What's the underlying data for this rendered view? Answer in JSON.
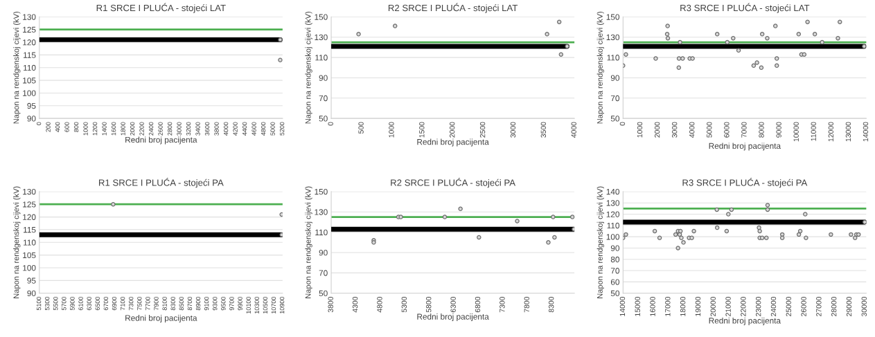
{
  "chart_data": [
    {
      "type": "scatter",
      "title": "R1 SRCE I PLUĆA - stojeći LAT",
      "xlabel": "Redni broj pacijenta",
      "ylabel": "Napon na rendgenskoj cijevi (kV)",
      "xlim": [
        0,
        5200
      ],
      "xticks": [
        0,
        200,
        400,
        600,
        800,
        1000,
        1200,
        1400,
        1600,
        1800,
        2000,
        2200,
        2400,
        2600,
        2800,
        3000,
        3200,
        3400,
        3600,
        3800,
        4000,
        4200,
        4400,
        4600,
        4800,
        5000,
        5200
      ],
      "ylim": [
        90,
        130
      ],
      "yticks": [
        90,
        95,
        100,
        105,
        110,
        115,
        120,
        125,
        130
      ],
      "grid": "y",
      "marker": "circle",
      "ref_lines": [
        {
          "axis": "y",
          "value": 125,
          "color": "#4caf50"
        }
      ],
      "series": [
        {
          "type": "line",
          "marker": "none",
          "color": "#000000",
          "x": [
            0,
            5150
          ],
          "values": [
            121,
            121
          ]
        },
        {
          "color": "#6e6e6e",
          "x": [
            5150,
            5150
          ],
          "values": [
            121,
            113
          ]
        }
      ]
    },
    {
      "type": "scatter",
      "title": "R2 SRCE I PLUĆA - stojeći LAT",
      "xlabel": "Redni broj pacijenta",
      "ylabel": "Napon na rendgenskoj cijevi (kV)",
      "xlim": [
        0,
        4000
      ],
      "xticks": [
        0,
        500,
        1000,
        1500,
        2000,
        2500,
        3000,
        3500,
        4000
      ],
      "ylim": [
        50,
        150
      ],
      "yticks": [
        50,
        70,
        90,
        110,
        130,
        150
      ],
      "grid": "y",
      "marker": "circle",
      "ref_lines": [
        {
          "axis": "y",
          "value": 125,
          "color": "#4caf50"
        }
      ],
      "series": [
        {
          "type": "line",
          "marker": "none",
          "color": "#000000",
          "x": [
            0,
            3880
          ],
          "values": [
            121,
            121
          ]
        },
        {
          "color": "#6e6e6e",
          "x": [
            450,
            1050,
            3550,
            3750,
            3780,
            3880
          ],
          "values": [
            133,
            141,
            133,
            145,
            113,
            121
          ]
        }
      ]
    },
    {
      "type": "scatter",
      "title": "R3 SRCE I PLUĆA - stojeći LAT",
      "xlabel": "Redni broj pacijenta",
      "ylabel": "Napon na rendgenskoj cijevi (kV)",
      "xlim": [
        0,
        14000
      ],
      "xticks": [
        0,
        1000,
        2000,
        3000,
        4000,
        5000,
        6000,
        7000,
        8000,
        9000,
        10000,
        11000,
        12000,
        13000,
        14000
      ],
      "ylim": [
        50,
        150
      ],
      "yticks": [
        50,
        70,
        90,
        110,
        130,
        150
      ],
      "grid": "y",
      "marker": "circle",
      "ref_lines": [
        {
          "axis": "y",
          "value": 125,
          "color": "#4caf50"
        }
      ],
      "series": [
        {
          "type": "line",
          "marker": "none",
          "color": "#000000",
          "x": [
            0,
            13880
          ],
          "values": [
            121,
            121
          ]
        },
        {
          "color": "#6e6e6e",
          "x": [
            0,
            165,
            1880,
            2565,
            2540,
            2580,
            3210,
            3220,
            3430,
            3280,
            3840,
            4000,
            5420,
            6000,
            6340,
            6650,
            7520,
            7710,
            7960,
            8010,
            8300,
            8770,
            8850,
            8850,
            10110,
            10270,
            10430,
            10620,
            11040,
            11460,
            12370,
            12480,
            13880
          ],
          "values": [
            102,
            113,
            109,
            141,
            133,
            129,
            100,
            109,
            109,
            125,
            109,
            109,
            133,
            125,
            129,
            117,
            102,
            105,
            100,
            133,
            129,
            141,
            109,
            102,
            133,
            113,
            113,
            145,
            133,
            125,
            129,
            145,
            121
          ]
        }
      ]
    },
    {
      "type": "scatter",
      "title": "R1 SRCE I PLUĆA - stojeći PA",
      "xlabel": "Redni broj pacijenta",
      "ylabel": "Napon na rendgenskoj cijevi (kV)",
      "xlim": [
        5100,
        10900
      ],
      "xticks": [
        5100,
        5300,
        5500,
        5700,
        5900,
        6100,
        6300,
        6500,
        6700,
        6900,
        7100,
        7300,
        7500,
        7700,
        7900,
        8100,
        8300,
        8500,
        8700,
        8900,
        9100,
        9300,
        9500,
        9700,
        9900,
        10100,
        10300,
        10500,
        10700,
        10900
      ],
      "ylim": [
        90,
        130
      ],
      "yticks": [
        90,
        95,
        100,
        105,
        110,
        115,
        120,
        125,
        130
      ],
      "grid": "y",
      "marker": "circle",
      "ref_lines": [
        {
          "axis": "y",
          "value": 125,
          "color": "#4caf50"
        }
      ],
      "series": [
        {
          "type": "line",
          "marker": "none",
          "color": "#000000",
          "x": [
            5100,
            10880
          ],
          "values": [
            113,
            113
          ]
        },
        {
          "color": "#6e6e6e",
          "x": [
            6860,
            10880,
            10880
          ],
          "values": [
            125,
            121,
            113
          ]
        }
      ]
    },
    {
      "type": "scatter",
      "title": "R2 SRCE I PLUĆA - stojeći PA",
      "xlabel": "Redni broj pacijenta",
      "ylabel": "Napon na rendgenskoj cijevi (kV)",
      "xlim": [
        3800,
        8760
      ],
      "xticks": [
        3800,
        4300,
        4800,
        5300,
        5800,
        6300,
        6800,
        7300,
        7800,
        8300
      ],
      "ylim": [
        50,
        150
      ],
      "yticks": [
        50,
        70,
        90,
        110,
        130,
        150
      ],
      "grid": "y",
      "marker": "circle",
      "ref_lines": [
        {
          "axis": "y",
          "value": 125,
          "color": "#4caf50"
        }
      ],
      "series": [
        {
          "type": "line",
          "marker": "none",
          "color": "#000000",
          "x": [
            3800,
            8750
          ],
          "values": [
            113,
            113
          ]
        },
        {
          "color": "#6e6e6e",
          "x": [
            4667,
            4667,
            5171,
            5220,
            6116,
            6436,
            6813,
            7593,
            8228,
            8325,
            8354,
            8718,
            8750
          ],
          "values": [
            102,
            100,
            125,
            125,
            125,
            133,
            105,
            121,
            100,
            125,
            105,
            125,
            113
          ]
        }
      ]
    },
    {
      "type": "scatter",
      "title": "R3 SRCE I PLUĆA - stojeći PA",
      "xlabel": "Redni broj pacijenta",
      "ylabel": "Napon na rendgenskoj cijevi (kV)",
      "xlim": [
        14000,
        30100
      ],
      "xticks": [
        14000,
        15000,
        16000,
        17000,
        18000,
        19000,
        20000,
        21000,
        22000,
        23000,
        24000,
        25000,
        26000,
        27000,
        28000,
        29000,
        30000
      ],
      "ylim": [
        50,
        140
      ],
      "yticks": [
        50,
        60,
        70,
        80,
        90,
        100,
        110,
        120,
        130,
        140
      ],
      "grid": "y",
      "marker": "circle",
      "ref_lines": [
        {
          "axis": "y",
          "value": 125,
          "color": "#4caf50"
        }
      ],
      "series": [
        {
          "type": "line",
          "marker": "none",
          "color": "#000000",
          "x": [
            14000,
            30000
          ],
          "values": [
            113,
            113
          ]
        },
        {
          "color": "#6e6e6e",
          "x": [
            14000,
            14190,
            16100,
            16420,
            17480,
            17640,
            17640,
            17800,
            17750,
            17860,
            18000,
            18370,
            18550,
            18690,
            20210,
            20230,
            20860,
            20970,
            21180,
            23000,
            23050,
            23050,
            23210,
            23490,
            23570,
            23570,
            24540,
            24540,
            25640,
            25730,
            26060,
            26110,
            27760,
            29090,
            29360,
            29450,
            29590,
            30000
          ],
          "values": [
            99,
            102,
            105,
            99,
            102,
            90,
            105,
            105,
            102,
            99,
            95,
            99,
            99,
            105,
            124,
            108,
            105,
            120,
            124,
            108,
            105,
            99,
            99,
            99,
            128,
            124,
            102,
            99,
            102,
            105,
            120,
            99,
            102,
            102,
            99,
            102,
            102,
            113
          ]
        }
      ]
    }
  ]
}
